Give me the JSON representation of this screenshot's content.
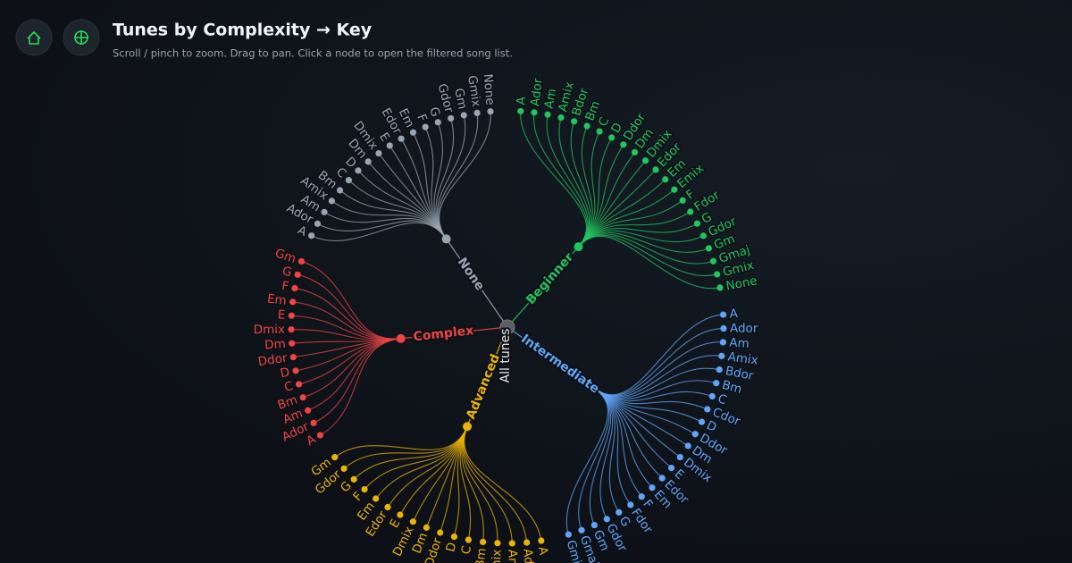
{
  "header": {
    "title": "Tunes by Complexity → Key",
    "subtitle": "Scroll / pinch to zoom. Drag to pan. Click a node to open the filtered song list."
  },
  "tree": {
    "root": "All tunes",
    "groups": [
      {
        "label": "None",
        "color": "#9aa4b2",
        "leaves": [
          "A",
          "Ador",
          "Am",
          "Amix",
          "Bm",
          "C",
          "D",
          "Dm",
          "Dmix",
          "E",
          "Edor",
          "Em",
          "F",
          "G",
          "Gdor",
          "Gm",
          "Gmix",
          "None"
        ]
      },
      {
        "label": "Beginner",
        "color": "#22c55e",
        "leaves": [
          "A",
          "Ador",
          "Am",
          "Amix",
          "Bdor",
          "Bm",
          "C",
          "D",
          "Ddor",
          "Dm",
          "Dmix",
          "Edor",
          "Em",
          "Emix",
          "F",
          "Fdor",
          "G",
          "Gdor",
          "Gm",
          "Gmaj",
          "Gmix",
          "None"
        ]
      },
      {
        "label": "Intermediate",
        "color": "#60a5fa",
        "leaves": [
          "A",
          "Ador",
          "Am",
          "Amix",
          "Bdor",
          "Bm",
          "C",
          "Cdor",
          "D",
          "Ddor",
          "Dm",
          "Dmix",
          "E",
          "Edor",
          "Em",
          "F",
          "Fdor",
          "G",
          "Gdor",
          "Gm",
          "Gmaj",
          "Gmix"
        ]
      },
      {
        "label": "Advanced",
        "color": "#eab308",
        "leaves": [
          "A",
          "Ador",
          "Am",
          "Amix",
          "Bm",
          "C",
          "D",
          "Ddor",
          "Dm",
          "Dmix",
          "E",
          "Edor",
          "Em",
          "F",
          "G",
          "Gdor",
          "Gm"
        ]
      },
      {
        "label": "Complex",
        "color": "#ef4444",
        "leaves": [
          "A",
          "Ador",
          "Am",
          "Bm",
          "C",
          "D",
          "Ddor",
          "Dm",
          "Dmix",
          "E",
          "Em",
          "F",
          "G",
          "Gm"
        ]
      }
    ]
  }
}
